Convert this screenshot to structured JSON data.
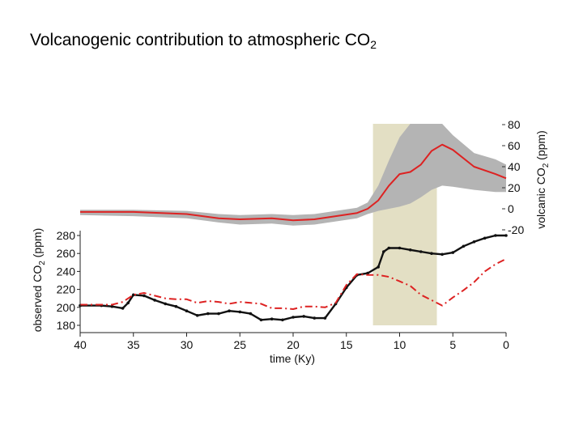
{
  "slide": {
    "title_main": "Volcanogenic contribution to atmospheric CO",
    "title_sub": "2"
  },
  "chart_data": {
    "type": "line",
    "title": "Volcanogenic contribution to atmospheric CO2",
    "xlabel": "time (Ky)",
    "xlim": [
      40,
      0
    ],
    "x_ticks": [
      40,
      35,
      30,
      25,
      20,
      15,
      10,
      5,
      0
    ],
    "shaded_interval": {
      "from": 12.5,
      "to": 6.5,
      "color": "#e3dfc4"
    },
    "colors": {
      "observed": "#111111",
      "modeled": "#dd2222",
      "volcanic": "#dd2222",
      "band": "#b4b4b4"
    },
    "axes": {
      "left": {
        "label_main": "observed CO",
        "label_sub": "2",
        "label_unit": " (ppm)",
        "ylim": [
          180,
          290
        ],
        "ticks": [
          180,
          200,
          220,
          240,
          260,
          280
        ]
      },
      "right": {
        "label_main": "volcanic CO",
        "label_sub": "2",
        "label_unit": " (ppm)",
        "ylim": [
          -25,
          80
        ],
        "ticks": [
          -20,
          0,
          20,
          40,
          60,
          80
        ]
      }
    },
    "series": [
      {
        "key": "volcanic",
        "axis": "right",
        "style": "solid",
        "x": [
          40,
          35,
          30,
          27,
          25,
          22,
          20,
          18,
          16,
          14,
          13,
          12,
          11,
          10,
          9,
          8,
          7,
          6,
          5,
          3,
          1,
          0
        ],
        "y": [
          -3,
          -3,
          -5,
          -9,
          -10,
          -9,
          -11,
          -10,
          -7,
          -4,
          0,
          8,
          22,
          33,
          35,
          42,
          55,
          61,
          56,
          40,
          33,
          29
        ],
        "upper": [
          -1,
          -1,
          -2,
          -5,
          -6,
          -5,
          -6,
          -5,
          -2,
          1,
          6,
          22,
          46,
          68,
          85,
          89,
          91,
          85,
          70,
          53,
          47,
          42
        ],
        "lower": [
          -6,
          -7,
          -9,
          -13,
          -15,
          -14,
          -16,
          -15,
          -12,
          -9,
          -5,
          -2,
          0,
          2,
          5,
          11,
          18,
          22,
          21,
          18,
          16,
          16
        ]
      },
      {
        "key": "observed",
        "axis": "left",
        "style": "solid",
        "x": [
          40,
          38,
          37,
          36,
          35.5,
          35,
          34,
          33,
          32,
          31,
          30,
          29,
          28,
          27,
          26,
          25,
          24,
          23,
          22,
          21,
          20,
          19,
          18,
          17,
          16,
          15,
          14,
          13,
          12,
          11.5,
          11,
          10,
          9,
          8,
          7,
          6,
          5,
          4,
          3,
          2,
          1,
          0
        ],
        "y": [
          202,
          202,
          201,
          199,
          205,
          214,
          213,
          208,
          204,
          201,
          196,
          191,
          193,
          193,
          196,
          195,
          193,
          186,
          187,
          186,
          189,
          190,
          188,
          188,
          204,
          222,
          236,
          238,
          245,
          262,
          266,
          266,
          264,
          262,
          260,
          259,
          261,
          268,
          273,
          277,
          280,
          280
        ]
      },
      {
        "key": "modeled",
        "axis": "left",
        "style": "dashdot",
        "x": [
          40,
          38,
          37,
          36,
          35,
          34,
          33,
          32,
          31,
          30,
          29,
          28,
          27,
          26,
          25,
          24,
          23,
          22,
          21,
          20,
          19,
          18,
          17,
          16,
          15,
          14,
          13,
          12,
          11,
          10,
          9,
          8,
          7,
          6,
          5,
          4,
          3,
          2,
          1,
          0
        ],
        "y": [
          203,
          203,
          203,
          206,
          214,
          216,
          213,
          210,
          209,
          209,
          205,
          207,
          206,
          204,
          206,
          205,
          204,
          199,
          199,
          198,
          201,
          201,
          200,
          205,
          225,
          237,
          236,
          236,
          234,
          229,
          224,
          214,
          208,
          202,
          211,
          219,
          228,
          240,
          248,
          254
        ]
      }
    ]
  }
}
